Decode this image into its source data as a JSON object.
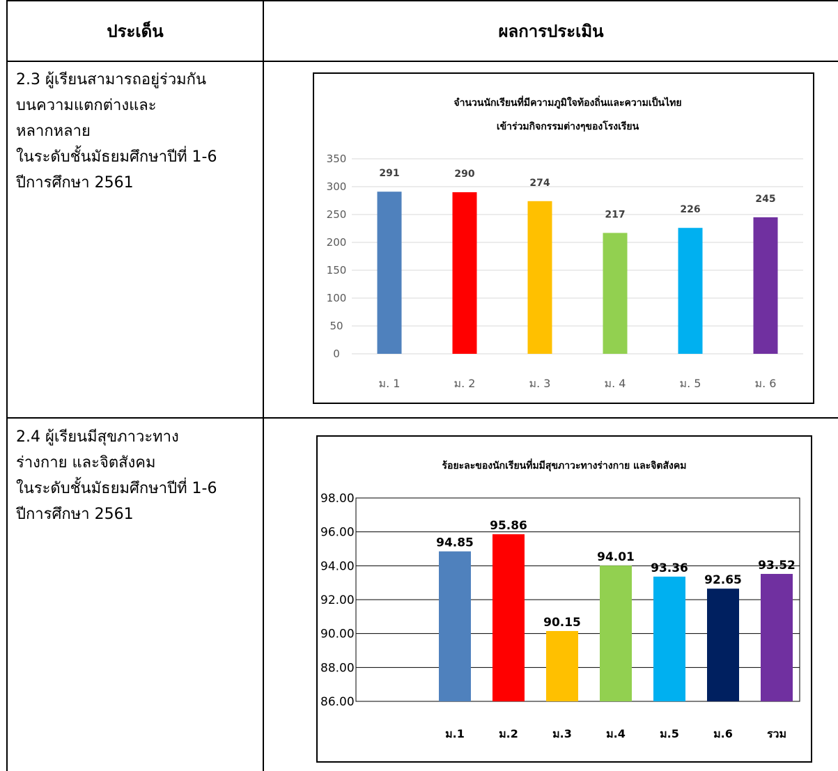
{
  "table": {
    "header": {
      "col1": "ประเด็น",
      "col2": "ผลการประเมิน"
    },
    "rows": [
      {
        "lines": [
          "2.3 ผู้เรียนสามารถอยู่ร่วมกัน",
          "บนความแตกต่างและ",
          "หลากหลาย",
          "ในระดับชั้นมัธยมศึกษาปีที่ 1-6",
          "ปีการศึกษา 2561"
        ]
      },
      {
        "lines": [
          "2.4 ผู้เรียนมีสุขภาวะทาง",
          "ร่างกาย และจิตสังคม",
          "ในระดับชั้นมัธยมศึกษาปีที่ 1-6",
          "ปีการศึกษา 2561"
        ]
      }
    ]
  },
  "chart_data": [
    {
      "type": "bar",
      "title": "จำนวนนักเรียนที่มีความภูมิใจท้องถิ่นและความเป็นไทย",
      "subtitle": "เข้าร่วมกิจกรรมต่างๆของโรงเรียน",
      "xlabel": "",
      "ylabel": "",
      "categories": [
        "ม. 1",
        "ม. 2",
        "ม. 3",
        "ม. 4",
        "ม. 5",
        "ม. 6"
      ],
      "values": [
        291,
        290,
        274,
        217,
        226,
        245
      ],
      "colors": [
        "#4F81BD",
        "#FF0000",
        "#FFC000",
        "#92D050",
        "#00B0F0",
        "#7030A0"
      ],
      "ylim": [
        0,
        350
      ],
      "yticks": [
        "0",
        "50",
        "100",
        "150",
        "200",
        "250",
        "300",
        "350"
      ],
      "grid": true
    },
    {
      "type": "bar",
      "title": "ร้อยะละของนักเรียนที่มมีสุขภาวะทางร่างกาย และจิตสังคม",
      "xlabel": "",
      "ylabel": "",
      "categories": [
        "ม.1",
        "ม.2",
        "ม.3",
        "ม.4",
        "ม.5",
        "ม.6",
        "รวม"
      ],
      "values": [
        94.85,
        95.86,
        90.15,
        94.01,
        93.36,
        92.65,
        93.52
      ],
      "value_labels": [
        "94.85",
        "95.86",
        "90.15",
        "94.01",
        "93.36",
        "92.65",
        "93.52"
      ],
      "colors": [
        "#4F81BD",
        "#FF0000",
        "#FFC000",
        "#92D050",
        "#00B0F0",
        "#002060",
        "#7030A0"
      ],
      "ylim": [
        86,
        98
      ],
      "yticks": [
        "86.00",
        "88.00",
        "90.00",
        "92.00",
        "94.00",
        "96.00",
        "98.00"
      ],
      "grid": true
    }
  ]
}
